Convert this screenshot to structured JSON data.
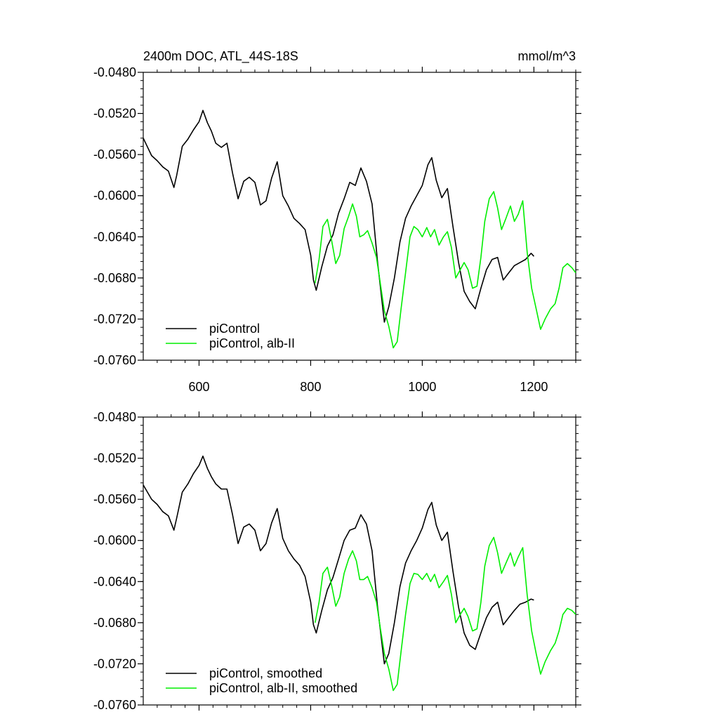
{
  "colors": {
    "piControl": "#000000",
    "alb_II": "#00ee00",
    "frame": "#000000",
    "background": "#ffffff"
  },
  "chart_data": [
    {
      "type": "line",
      "title": "2400m DOC, ATL_44S-18S",
      "units": "mmol/m^3",
      "xlim": [
        500,
        1275
      ],
      "ylim": [
        -0.076,
        -0.048
      ],
      "x_ticks": [
        600,
        800,
        1000,
        1200
      ],
      "x_tick_labels": [
        "600",
        "800",
        "1000",
        "1200"
      ],
      "y_ticks": [
        -0.048,
        -0.052,
        -0.056,
        -0.06,
        -0.064,
        -0.068,
        -0.072,
        -0.076
      ],
      "y_tick_labels": [
        "-0.0480",
        "-0.0520",
        "-0.0560",
        "-0.0600",
        "-0.0640",
        "-0.0680",
        "-0.0720",
        "-0.0760"
      ],
      "legend_position": "bottom-left",
      "series": [
        {
          "name": "piControl",
          "x": [
            500,
            515,
            525,
            535,
            545,
            555,
            560,
            570,
            580,
            590,
            600,
            607,
            615,
            622,
            630,
            640,
            650,
            660,
            670,
            680,
            690,
            700,
            710,
            720,
            730,
            740,
            750,
            760,
            770,
            780,
            790,
            800,
            805,
            810,
            820,
            830,
            840,
            850,
            860,
            870,
            880,
            890,
            900,
            910,
            920,
            932,
            940,
            950,
            960,
            970,
            980,
            990,
            1000,
            1010,
            1017,
            1025,
            1035,
            1045,
            1055,
            1065,
            1075,
            1085,
            1095,
            1105,
            1115,
            1125,
            1135,
            1145,
            1155,
            1165,
            1175,
            1185,
            1195,
            1200
          ],
          "y": [
            -0.0544,
            -0.0561,
            -0.0566,
            -0.0572,
            -0.0576,
            -0.0592,
            -0.058,
            -0.0552,
            -0.0545,
            -0.0536,
            -0.0528,
            -0.0517,
            -0.0529,
            -0.0537,
            -0.0549,
            -0.0553,
            -0.0549,
            -0.0578,
            -0.0603,
            -0.0586,
            -0.0582,
            -0.0587,
            -0.0609,
            -0.0605,
            -0.0583,
            -0.0567,
            -0.06,
            -0.061,
            -0.0622,
            -0.0627,
            -0.0633,
            -0.0658,
            -0.0682,
            -0.0692,
            -0.0669,
            -0.0649,
            -0.0638,
            -0.0617,
            -0.0603,
            -0.0587,
            -0.059,
            -0.0573,
            -0.0586,
            -0.0608,
            -0.0665,
            -0.0723,
            -0.0708,
            -0.068,
            -0.0645,
            -0.0622,
            -0.061,
            -0.06,
            -0.059,
            -0.057,
            -0.0563,
            -0.0585,
            -0.0602,
            -0.0593,
            -0.063,
            -0.0665,
            -0.0693,
            -0.0703,
            -0.071,
            -0.069,
            -0.0672,
            -0.0662,
            -0.066,
            -0.0682,
            -0.0675,
            -0.0668,
            -0.0665,
            -0.0662,
            -0.0656,
            -0.0659
          ]
        },
        {
          "name": "piControl, alb-II",
          "x": [
            808,
            815,
            822,
            830,
            838,
            845,
            852,
            860,
            868,
            875,
            882,
            888,
            895,
            902,
            910,
            918,
            925,
            932,
            940,
            948,
            955,
            962,
            970,
            978,
            985,
            992,
            1000,
            1008,
            1015,
            1022,
            1030,
            1038,
            1045,
            1052,
            1060,
            1068,
            1075,
            1082,
            1090,
            1098,
            1105,
            1112,
            1120,
            1128,
            1135,
            1142,
            1150,
            1158,
            1165,
            1172,
            1180,
            1188,
            1196,
            1204,
            1212,
            1220,
            1230,
            1238,
            1245,
            1252,
            1260,
            1268,
            1275
          ],
          "y": [
            -0.0685,
            -0.0662,
            -0.063,
            -0.0623,
            -0.0645,
            -0.0666,
            -0.0658,
            -0.0632,
            -0.062,
            -0.0608,
            -0.062,
            -0.064,
            -0.0638,
            -0.0634,
            -0.0646,
            -0.066,
            -0.0686,
            -0.0712,
            -0.0727,
            -0.0748,
            -0.0742,
            -0.071,
            -0.0675,
            -0.064,
            -0.063,
            -0.0633,
            -0.064,
            -0.0631,
            -0.064,
            -0.0633,
            -0.0648,
            -0.064,
            -0.0635,
            -0.065,
            -0.068,
            -0.0672,
            -0.0665,
            -0.0672,
            -0.069,
            -0.0688,
            -0.066,
            -0.0625,
            -0.0603,
            -0.0596,
            -0.0612,
            -0.0633,
            -0.0622,
            -0.061,
            -0.0625,
            -0.0618,
            -0.0605,
            -0.0655,
            -0.069,
            -0.071,
            -0.073,
            -0.072,
            -0.071,
            -0.0705,
            -0.069,
            -0.067,
            -0.0666,
            -0.067,
            -0.0675
          ]
        }
      ]
    },
    {
      "type": "line",
      "xlim": [
        500,
        1275
      ],
      "ylim": [
        -0.076,
        -0.048
      ],
      "x_ticks": [
        600,
        800,
        1000,
        1200
      ],
      "y_ticks": [
        -0.048,
        -0.052,
        -0.056,
        -0.06,
        -0.064,
        -0.068,
        -0.072,
        -0.076
      ],
      "y_tick_labels": [
        "-0.0480",
        "-0.0520",
        "-0.0560",
        "-0.0600",
        "-0.0640",
        "-0.0680",
        "-0.0720",
        "-0.0760"
      ],
      "legend_position": "bottom-left",
      "series": [
        {
          "name": "piControl, smoothed",
          "x": [
            500,
            515,
            525,
            535,
            545,
            555,
            560,
            570,
            580,
            590,
            600,
            607,
            615,
            622,
            630,
            640,
            650,
            660,
            670,
            680,
            690,
            700,
            710,
            720,
            730,
            740,
            750,
            760,
            770,
            780,
            790,
            800,
            805,
            810,
            820,
            830,
            840,
            850,
            860,
            870,
            880,
            890,
            900,
            910,
            920,
            932,
            940,
            950,
            960,
            970,
            980,
            990,
            1000,
            1010,
            1017,
            1025,
            1035,
            1045,
            1055,
            1065,
            1075,
            1085,
            1095,
            1105,
            1115,
            1125,
            1135,
            1145,
            1155,
            1165,
            1175,
            1185,
            1195,
            1200
          ],
          "y": [
            -0.0546,
            -0.056,
            -0.0565,
            -0.0572,
            -0.0576,
            -0.059,
            -0.0578,
            -0.0553,
            -0.0545,
            -0.0535,
            -0.0527,
            -0.0518,
            -0.053,
            -0.0538,
            -0.0545,
            -0.055,
            -0.055,
            -0.0575,
            -0.0603,
            -0.0587,
            -0.0584,
            -0.059,
            -0.061,
            -0.0603,
            -0.0583,
            -0.0569,
            -0.0598,
            -0.061,
            -0.0618,
            -0.0624,
            -0.0635,
            -0.066,
            -0.0682,
            -0.069,
            -0.0668,
            -0.0648,
            -0.0636,
            -0.0618,
            -0.06,
            -0.059,
            -0.0588,
            -0.0575,
            -0.0584,
            -0.061,
            -0.0665,
            -0.072,
            -0.071,
            -0.068,
            -0.0645,
            -0.0622,
            -0.061,
            -0.06,
            -0.0588,
            -0.057,
            -0.0563,
            -0.0585,
            -0.06,
            -0.0592,
            -0.063,
            -0.0665,
            -0.069,
            -0.0702,
            -0.0706,
            -0.069,
            -0.0675,
            -0.0665,
            -0.066,
            -0.0682,
            -0.0675,
            -0.0668,
            -0.0662,
            -0.066,
            -0.0657,
            -0.0658
          ]
        },
        {
          "name": "piControl, alb-II, smoothed",
          "x": [
            808,
            815,
            822,
            830,
            838,
            845,
            852,
            860,
            868,
            875,
            882,
            888,
            895,
            902,
            910,
            918,
            925,
            932,
            940,
            948,
            955,
            962,
            970,
            978,
            985,
            992,
            1000,
            1008,
            1015,
            1022,
            1030,
            1038,
            1045,
            1052,
            1060,
            1068,
            1075,
            1082,
            1090,
            1098,
            1105,
            1112,
            1120,
            1128,
            1135,
            1142,
            1150,
            1158,
            1165,
            1172,
            1180,
            1188,
            1196,
            1204,
            1212,
            1220,
            1230,
            1238,
            1245,
            1252,
            1260,
            1268,
            1275
          ],
          "y": [
            -0.068,
            -0.066,
            -0.0632,
            -0.0626,
            -0.0645,
            -0.0664,
            -0.0655,
            -0.0632,
            -0.0618,
            -0.061,
            -0.062,
            -0.0638,
            -0.0638,
            -0.0635,
            -0.0646,
            -0.066,
            -0.0686,
            -0.071,
            -0.0725,
            -0.0746,
            -0.074,
            -0.0708,
            -0.0672,
            -0.0642,
            -0.0632,
            -0.0633,
            -0.0638,
            -0.0632,
            -0.064,
            -0.0633,
            -0.0646,
            -0.064,
            -0.0634,
            -0.0652,
            -0.068,
            -0.0672,
            -0.0666,
            -0.0674,
            -0.0688,
            -0.0686,
            -0.066,
            -0.0625,
            -0.0605,
            -0.0597,
            -0.0612,
            -0.0632,
            -0.0622,
            -0.0612,
            -0.0625,
            -0.0616,
            -0.0607,
            -0.0653,
            -0.0688,
            -0.071,
            -0.073,
            -0.0718,
            -0.0707,
            -0.07,
            -0.0688,
            -0.0672,
            -0.0666,
            -0.0668,
            -0.0672
          ]
        }
      ]
    }
  ]
}
